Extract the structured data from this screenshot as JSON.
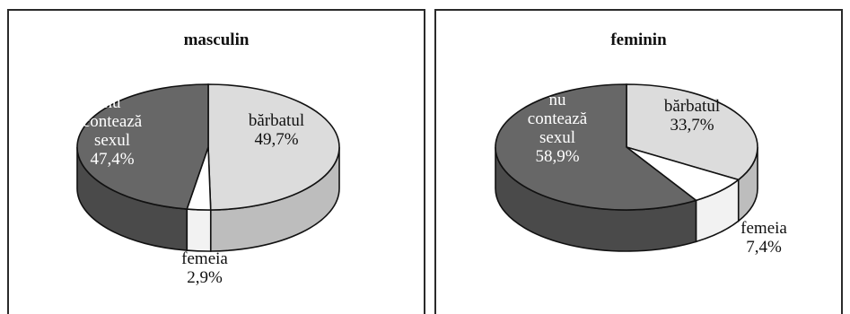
{
  "chart_data": [
    {
      "type": "pie",
      "title": "masculin",
      "slices": [
        {
          "label": "bărbatul",
          "value": 49.7,
          "display": "49,7%",
          "color": "#dcdcdc"
        },
        {
          "label": "femeia",
          "value": 2.9,
          "display": "2,9%",
          "color": "#ffffff"
        },
        {
          "label": "nu contează sexul",
          "label_lines": [
            "nu",
            "contează",
            "sexul"
          ],
          "value": 47.4,
          "display": "47,4%",
          "color": "#676767"
        }
      ]
    },
    {
      "type": "pie",
      "title": "feminin",
      "slices": [
        {
          "label": "bărbatul",
          "value": 33.7,
          "display": "33,7%",
          "color": "#dcdcdc"
        },
        {
          "label": "femeia",
          "value": 7.4,
          "display": "7,4%",
          "color": "#ffffff"
        },
        {
          "label": "nu contează sexul",
          "label_lines": [
            "nu",
            "contează",
            "sexul"
          ],
          "value": 58.9,
          "display": "58,9%",
          "color": "#676767"
        }
      ]
    }
  ]
}
